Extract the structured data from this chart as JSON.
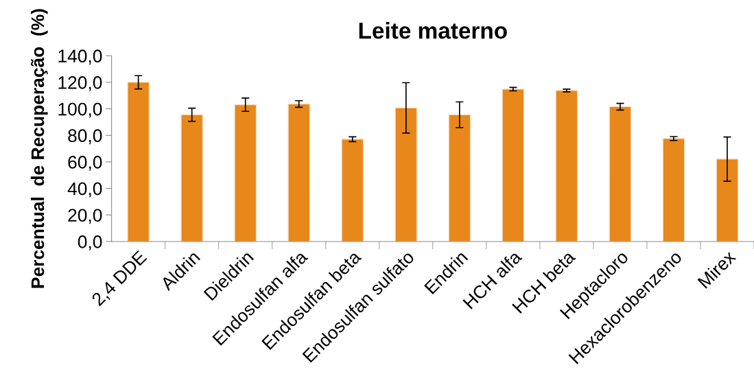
{
  "chart_data": {
    "type": "bar",
    "title": "Leite materno",
    "ylabel": "Percentual  de Recuperação  (%)",
    "categories": [
      "2,4 DDE",
      "Aldrin",
      "Dieldrin",
      "Endosulfan alfa",
      "Endosulfan beta",
      "Endosulfan sulfato",
      "Endrin",
      "HCH alfa",
      "HCH beta",
      "Heptacloro",
      "Hexaclorobenzeno",
      "Mirex"
    ],
    "values": [
      120.0,
      95.5,
      103.1,
      103.6,
      77.1,
      100.7,
      95.5,
      114.8,
      113.8,
      101.6,
      77.6,
      62.1
    ],
    "errors": [
      5.0,
      5.0,
      5.0,
      2.5,
      1.8,
      19.0,
      9.7,
      1.3,
      1.0,
      2.5,
      1.5,
      16.7
    ],
    "color": "#e8871a",
    "ylim": [
      0,
      140
    ],
    "yticks": [
      {
        "value": 0,
        "label": "0,0"
      },
      {
        "value": 20,
        "label": "20,0"
      },
      {
        "value": 40,
        "label": "40,0"
      },
      {
        "value": 60,
        "label": "60,0"
      },
      {
        "value": 80,
        "label": "80,0"
      },
      {
        "value": 100,
        "label": "100,0"
      },
      {
        "value": 120,
        "label": "120,0"
      },
      {
        "value": 140,
        "label": "140,0"
      }
    ],
    "grid": false,
    "legend": false
  }
}
